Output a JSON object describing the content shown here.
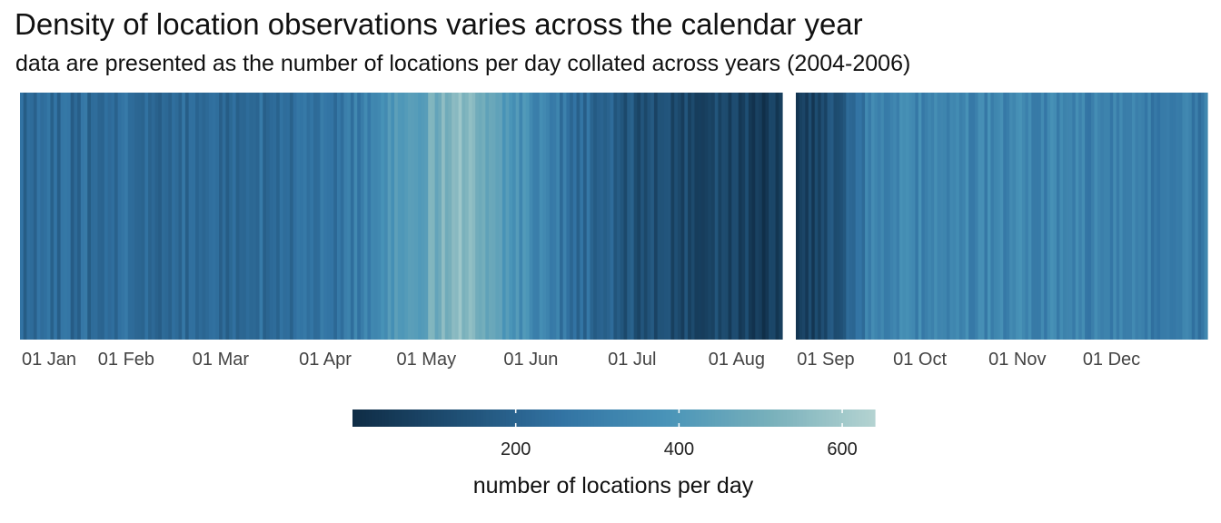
{
  "title": "Density of location observations varies across the calendar year",
  "subtitle": "data are presented as the number of locations per day collated across years (2004-2006)",
  "chart_data": {
    "type": "heatmap",
    "x_axis": "calendar day of year (daily tiles)",
    "panels": [
      {
        "name": "panel-1",
        "x_start": "2005-01-01",
        "x_end": "2005-08-14",
        "tick_labels": [
          "01 Jan",
          "01 Feb",
          "01 Mar",
          "01 Apr",
          "01 May",
          "01 Jun",
          "01 Jul",
          "01 Aug"
        ],
        "tick_dates": [
          "2005-01-01",
          "2005-02-01",
          "2005-03-01",
          "2005-04-01",
          "2005-05-01",
          "2005-06-01",
          "2005-07-01",
          "2005-08-01"
        ]
      },
      {
        "name": "panel-2",
        "x_start": "2005-08-23",
        "x_end": "2005-12-31",
        "tick_labels": [
          "01 Sep",
          "01 Oct",
          "01 Nov",
          "01 Dec"
        ],
        "tick_dates": [
          "2005-09-01",
          "2005-10-01",
          "2005-11-01",
          "2005-12-01"
        ]
      }
    ],
    "approximate_daily_trend": [
      {
        "date": "2005-01-01",
        "locations_per_day": 230
      },
      {
        "date": "2005-02-01",
        "locations_per_day": 230
      },
      {
        "date": "2005-03-01",
        "locations_per_day": 230
      },
      {
        "date": "2005-04-01",
        "locations_per_day": 240
      },
      {
        "date": "2005-04-15",
        "locations_per_day": 320
      },
      {
        "date": "2005-05-01",
        "locations_per_day": 470
      },
      {
        "date": "2005-05-12",
        "locations_per_day": 560
      },
      {
        "date": "2005-05-20",
        "locations_per_day": 440
      },
      {
        "date": "2005-06-01",
        "locations_per_day": 340
      },
      {
        "date": "2005-06-15",
        "locations_per_day": 240
      },
      {
        "date": "2005-07-01",
        "locations_per_day": 140
      },
      {
        "date": "2005-08-01",
        "locations_per_day": 90
      },
      {
        "date": "2005-08-14",
        "locations_per_day": 50
      },
      {
        "date": "2005-08-23",
        "locations_per_day": 60
      },
      {
        "date": "2005-09-01",
        "locations_per_day": 110
      },
      {
        "date": "2005-09-15",
        "locations_per_day": 300
      },
      {
        "date": "2005-10-01",
        "locations_per_day": 330
      },
      {
        "date": "2005-11-01",
        "locations_per_day": 330
      },
      {
        "date": "2005-12-01",
        "locations_per_day": 310
      },
      {
        "date": "2005-12-31",
        "locations_per_day": 280
      }
    ],
    "colorbar": {
      "title": "number of locations per day",
      "range": [
        0,
        640
      ],
      "tick_values": [
        200,
        400,
        600
      ],
      "tick_labels": [
        "200",
        "400",
        "600"
      ],
      "colors": [
        "#0f2c45",
        "#1f4f74",
        "#3273a3",
        "#4994b8",
        "#78b0bb",
        "#b4d3d1"
      ]
    },
    "legend_position": "bottom"
  }
}
